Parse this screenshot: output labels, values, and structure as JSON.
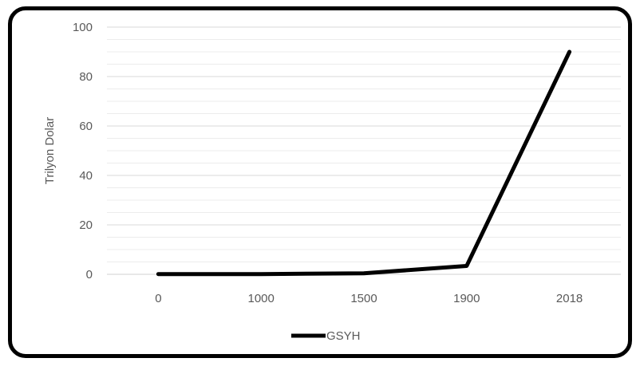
{
  "chart_data": {
    "type": "line",
    "title": "",
    "xlabel": "",
    "ylabel": "Trilyon Dolar",
    "categories": [
      "0",
      "1000",
      "1500",
      "1900",
      "2018"
    ],
    "series": [
      {
        "name": "GSYH",
        "values": [
          0.1,
          0.1,
          0.4,
          3.4,
          90
        ]
      }
    ],
    "ylim": [
      0,
      100
    ],
    "yticks": [
      0,
      20,
      40,
      60,
      80,
      100
    ],
    "grid": true,
    "legend": "bottom",
    "colors": {
      "line": "#000000",
      "grid": "#d9d9d9",
      "text": "#595959"
    }
  }
}
